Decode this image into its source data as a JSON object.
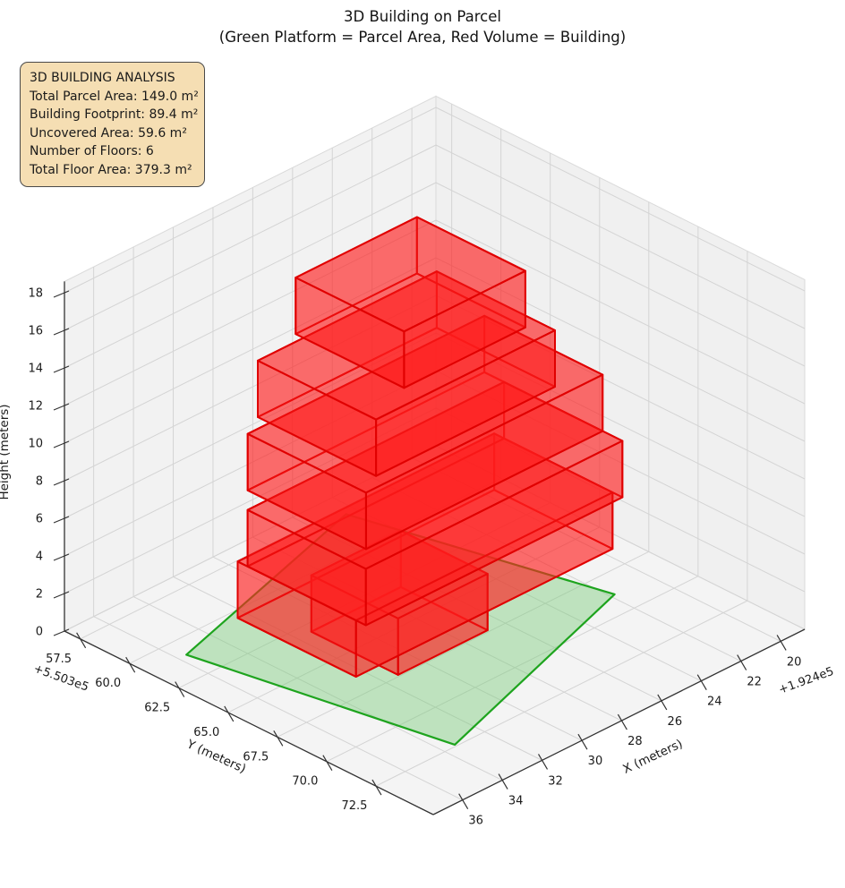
{
  "title": {
    "line1": "3D Building on Parcel",
    "line2": "(Green Platform = Parcel Area, Red Volume = Building)"
  },
  "analysis_box": {
    "heading": "3D BUILDING ANALYSIS",
    "lines": [
      "Total Parcel Area: 149.0 m²",
      "Building Footprint: 89.4 m²",
      "Uncovered Area: 59.6 m²",
      "Number of Floors: 6",
      "Total Floor Area: 379.3 m²"
    ]
  },
  "chart_data": {
    "type": "3d-building-plot",
    "stats": {
      "total_parcel_area_m2": 149.0,
      "building_footprint_m2": 89.4,
      "uncovered_area_m2": 59.6,
      "number_of_floors": 6,
      "total_floor_area_m2": 379.3,
      "floor_height_m": 3
    },
    "axes": {
      "x": {
        "label": "X (meters)",
        "tick_labels": [
          "20",
          "22",
          "24",
          "26",
          "28",
          "30",
          "32",
          "34",
          "36"
        ],
        "ticks": [
          20,
          22,
          24,
          26,
          28,
          30,
          32,
          34,
          36
        ],
        "offset_text": "+1.924e5",
        "range": [
          18.79,
          37.47
        ]
      },
      "y": {
        "label": "Y (meters)",
        "tick_labels": [
          "57.5",
          "60.0",
          "62.5",
          "65.0",
          "67.5",
          "70.0",
          "72.5"
        ],
        "ticks": [
          57.5,
          60.0,
          62.5,
          65.0,
          67.5,
          70.0,
          72.5
        ],
        "offset_text": "+5.503e5",
        "range": [
          56.7,
          75.41
        ]
      },
      "z": {
        "label": "Height (meters)",
        "tick_labels": [
          "0",
          "2",
          "4",
          "6",
          "8",
          "10",
          "12",
          "14",
          "16",
          "18"
        ],
        "ticks": [
          0,
          2,
          4,
          6,
          8,
          10,
          12,
          14,
          16,
          18
        ],
        "range": [
          0,
          18.6
        ]
      }
    },
    "parcel": {
      "polygon_xy": [
        [
          35.6,
          61.0
        ],
        [
          33.4,
          72.4
        ],
        [
          21.8,
          68.8
        ],
        [
          24.5,
          57.9
        ]
      ],
      "z": 0,
      "fill": "rgba(125,205,125,0.45)",
      "edge_color": "#1ea41e"
    },
    "building": {
      "fill": "rgba(255,30,30,0.40)",
      "edge_color": "#e00000",
      "floors": [
        {
          "x": [
            26.8,
            31.3
          ],
          "y": [
            63.0,
            67.4
          ],
          "z": [
            0,
            3
          ]
        },
        {
          "x": [
            22.4,
            35.3
          ],
          "y": [
            63.3,
            69.3
          ],
          "z": [
            3,
            6
          ]
        },
        {
          "x": [
            22.4,
            35.3
          ],
          "y": [
            63.8,
            69.8
          ],
          "z": [
            6,
            9
          ]
        },
        {
          "x": [
            22.4,
            34.3
          ],
          "y": [
            62.8,
            68.8
          ],
          "z": [
            9,
            12
          ]
        },
        {
          "x": [
            24.2,
            33.2
          ],
          "y": [
            62.2,
            68.2
          ],
          "z": [
            12,
            15
          ]
        },
        {
          "x": [
            24.8,
            30.9
          ],
          "y": [
            61.8,
            67.3
          ],
          "z": [
            15,
            18
          ]
        }
      ]
    },
    "style": {
      "pane_floor": "#f4f4f4",
      "pane_wall_left": "#f2f2f2",
      "pane_wall_right": "#f0f0f0",
      "pane_edge": "#dadada",
      "grid_color": "#d4d4d4",
      "spine_color": "#333333",
      "tick_label_color": "#1a1a1a"
    },
    "legend_position": "none",
    "grid": true
  }
}
